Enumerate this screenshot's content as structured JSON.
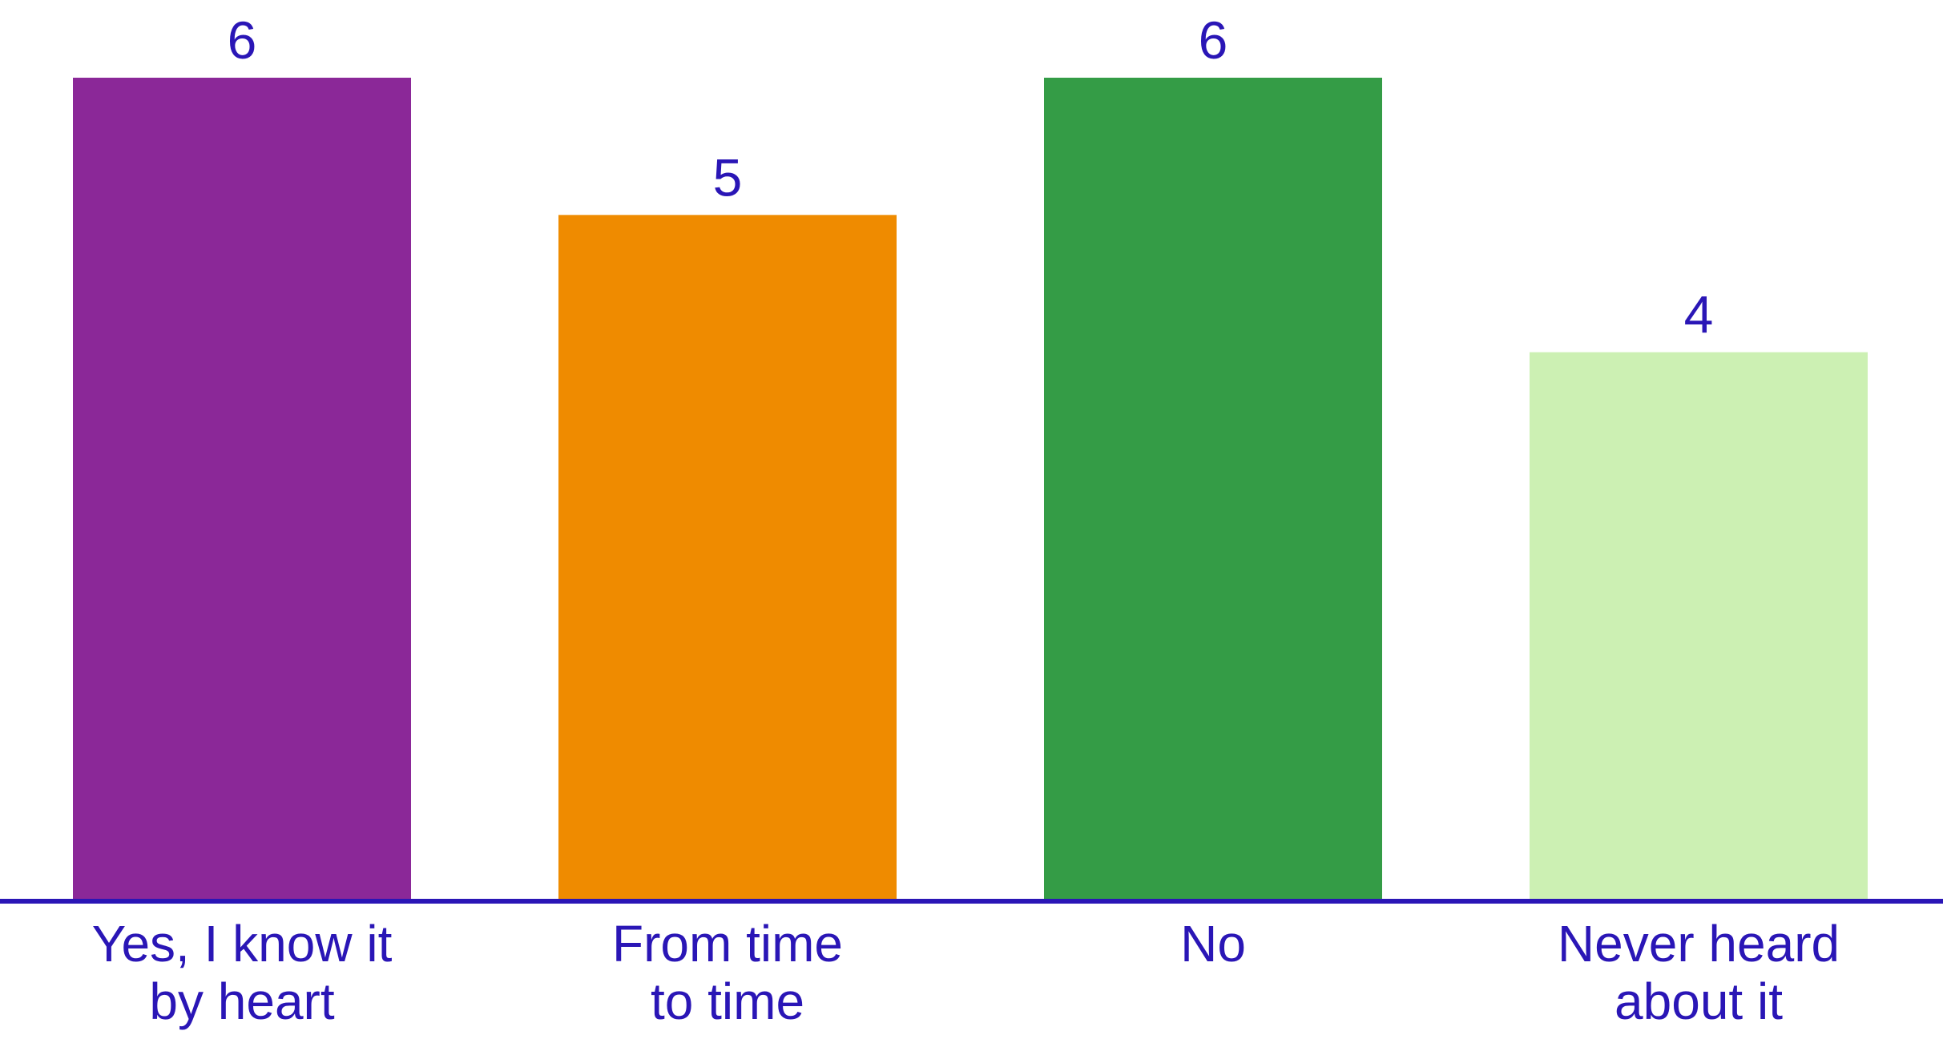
{
  "chart_data": {
    "type": "bar",
    "categories": [
      [
        "Yes, I know it",
        "by heart"
      ],
      [
        "From time",
        "to time"
      ],
      [
        "No"
      ],
      [
        "Never heard",
        "about it"
      ]
    ],
    "values": [
      6,
      5,
      6,
      4
    ],
    "data_labels": [
      "6",
      "5",
      "6",
      "4"
    ],
    "bar_colors": [
      "#8b2898",
      "#ef8b00",
      "#349c46",
      "#ccf0b3"
    ],
    "text_color": "#2a16b6",
    "axis_color": "#2a16b6",
    "ylim": [
      0,
      6
    ],
    "grid": false,
    "legend": "none",
    "title": "",
    "xlabel": "",
    "ylabel": ""
  }
}
